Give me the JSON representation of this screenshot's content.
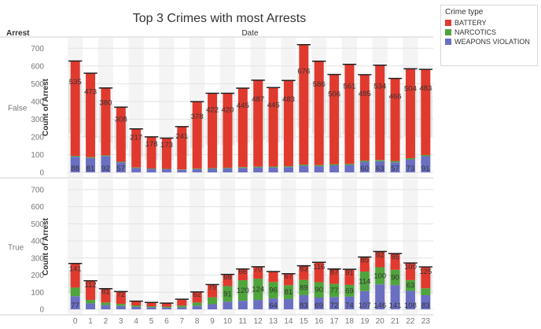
{
  "chart_data": {
    "type": "bar",
    "stacked": true,
    "title": "Top 3 Crimes with most Arrests",
    "row_dimension": "Arrest",
    "column_header": "Date",
    "ylabel": "Count of Arrest",
    "ylim": [
      0,
      750
    ],
    "yticks": [
      0,
      100,
      200,
      300,
      400,
      500,
      600,
      700
    ],
    "grid": true,
    "legend_title": "Crime type",
    "legend_position": "top-right",
    "categories": [
      "0",
      "1",
      "2",
      "3",
      "4",
      "5",
      "6",
      "7",
      "8",
      "9",
      "10",
      "11",
      "12",
      "13",
      "14",
      "15",
      "16",
      "17",
      "18",
      "19",
      "20",
      "21",
      "22",
      "23"
    ],
    "colors": {
      "BATTERY": "#e03a2f",
      "NARCOTICS": "#4fa43b",
      "WEAPONS VIOLATION": "#6b6fc2",
      "reference_band": "#d6d6d6"
    },
    "panels": [
      {
        "label": "False",
        "series": [
          {
            "name": "WEAPONS VIOLATION",
            "values": [
              88,
              81,
              92,
              57,
              25,
              20,
              18,
              15,
              18,
              20,
              22,
              25,
              28,
              28,
              30,
              38,
              35,
              40,
              42,
              60,
              63,
              57,
              73,
              91
            ],
            "labels": [
              "88",
              "81",
              "92",
              "57",
              "",
              "",
              "",
              "",
              "",
              "",
              "",
              "",
              "",
              "",
              "",
              "",
              "",
              "",
              "",
              "60",
              "63",
              "57",
              "73",
              "91"
            ]
          },
          {
            "name": "NARCOTICS",
            "values": [
              5,
              5,
              4,
              3,
              3,
              2,
              2,
              2,
              3,
              4,
              4,
              5,
              5,
              5,
              5,
              6,
              6,
              6,
              6,
              6,
              7,
              7,
              7,
              7
            ],
            "labels": []
          },
          {
            "name": "BATTERY",
            "values": [
              535,
              473,
              380,
              308,
              217,
              178,
              173,
              241,
              378,
              422,
              420,
              445,
              487,
              445,
              483,
              676,
              586,
              506,
              561,
              485,
              534,
              466,
              504,
              483
            ],
            "labels": [
              "535",
              "473",
              "380",
              "308",
              "217",
              "178",
              "173",
              "241",
              "378",
              "422",
              "420",
              "445",
              "487",
              "445",
              "483",
              "676",
              "586",
              "506",
              "561",
              "485",
              "534",
              "466",
              "504",
              "483"
            ]
          }
        ]
      },
      {
        "label": "True",
        "series": [
          {
            "name": "WEAPONS VIOLATION",
            "values": [
              77,
              35,
              25,
              20,
              15,
              12,
              10,
              12,
              20,
              30,
              45,
              50,
              55,
              64,
              60,
              83,
              69,
              72,
              74,
              107,
              146,
              141,
              108,
              83
            ],
            "labels": [
              "77",
              "",
              "",
              "",
              "",
              "",
              "",
              "",
              "",
              "",
              "",
              "",
              "",
              "64",
              "",
              "83",
              "69",
              "72",
              "74",
              "107",
              "146",
              "141",
              "108",
              "83"
            ]
          },
          {
            "name": "NARCOTICS",
            "values": [
              50,
              20,
              15,
              12,
              8,
              6,
              6,
              10,
              20,
              40,
              91,
              120,
              124,
              96,
              81,
              89,
              90,
              77,
              69,
              114,
              100,
              90,
              63,
              40
            ],
            "labels": [
              "",
              "",
              "",
              "",
              "",
              "",
              "",
              "",
              "",
              "",
              "91",
              "120",
              "124",
              "96",
              "81",
              "89",
              "90",
              "77",
              "69",
              "114",
              "100",
              "90",
              "63",
              ""
            ]
          },
          {
            "name": "BATTERY",
            "values": [
              141,
              112,
              81,
              72,
              25,
              22,
              20,
              37,
              62,
              75,
              68,
              66,
              70,
              61,
              67,
              83,
              116,
              87,
              91,
              85,
              92,
              95,
              100,
              125
            ],
            "labels": [
              "141",
              "112",
              "81",
              "72",
              "",
              "",
              "",
              "",
              "62",
              "75",
              "68",
              "66",
              "70",
              "",
              "67",
              "83",
              "116",
              "87",
              "91",
              "85",
              "92",
              "95",
              "100",
              "125"
            ]
          }
        ]
      }
    ]
  }
}
